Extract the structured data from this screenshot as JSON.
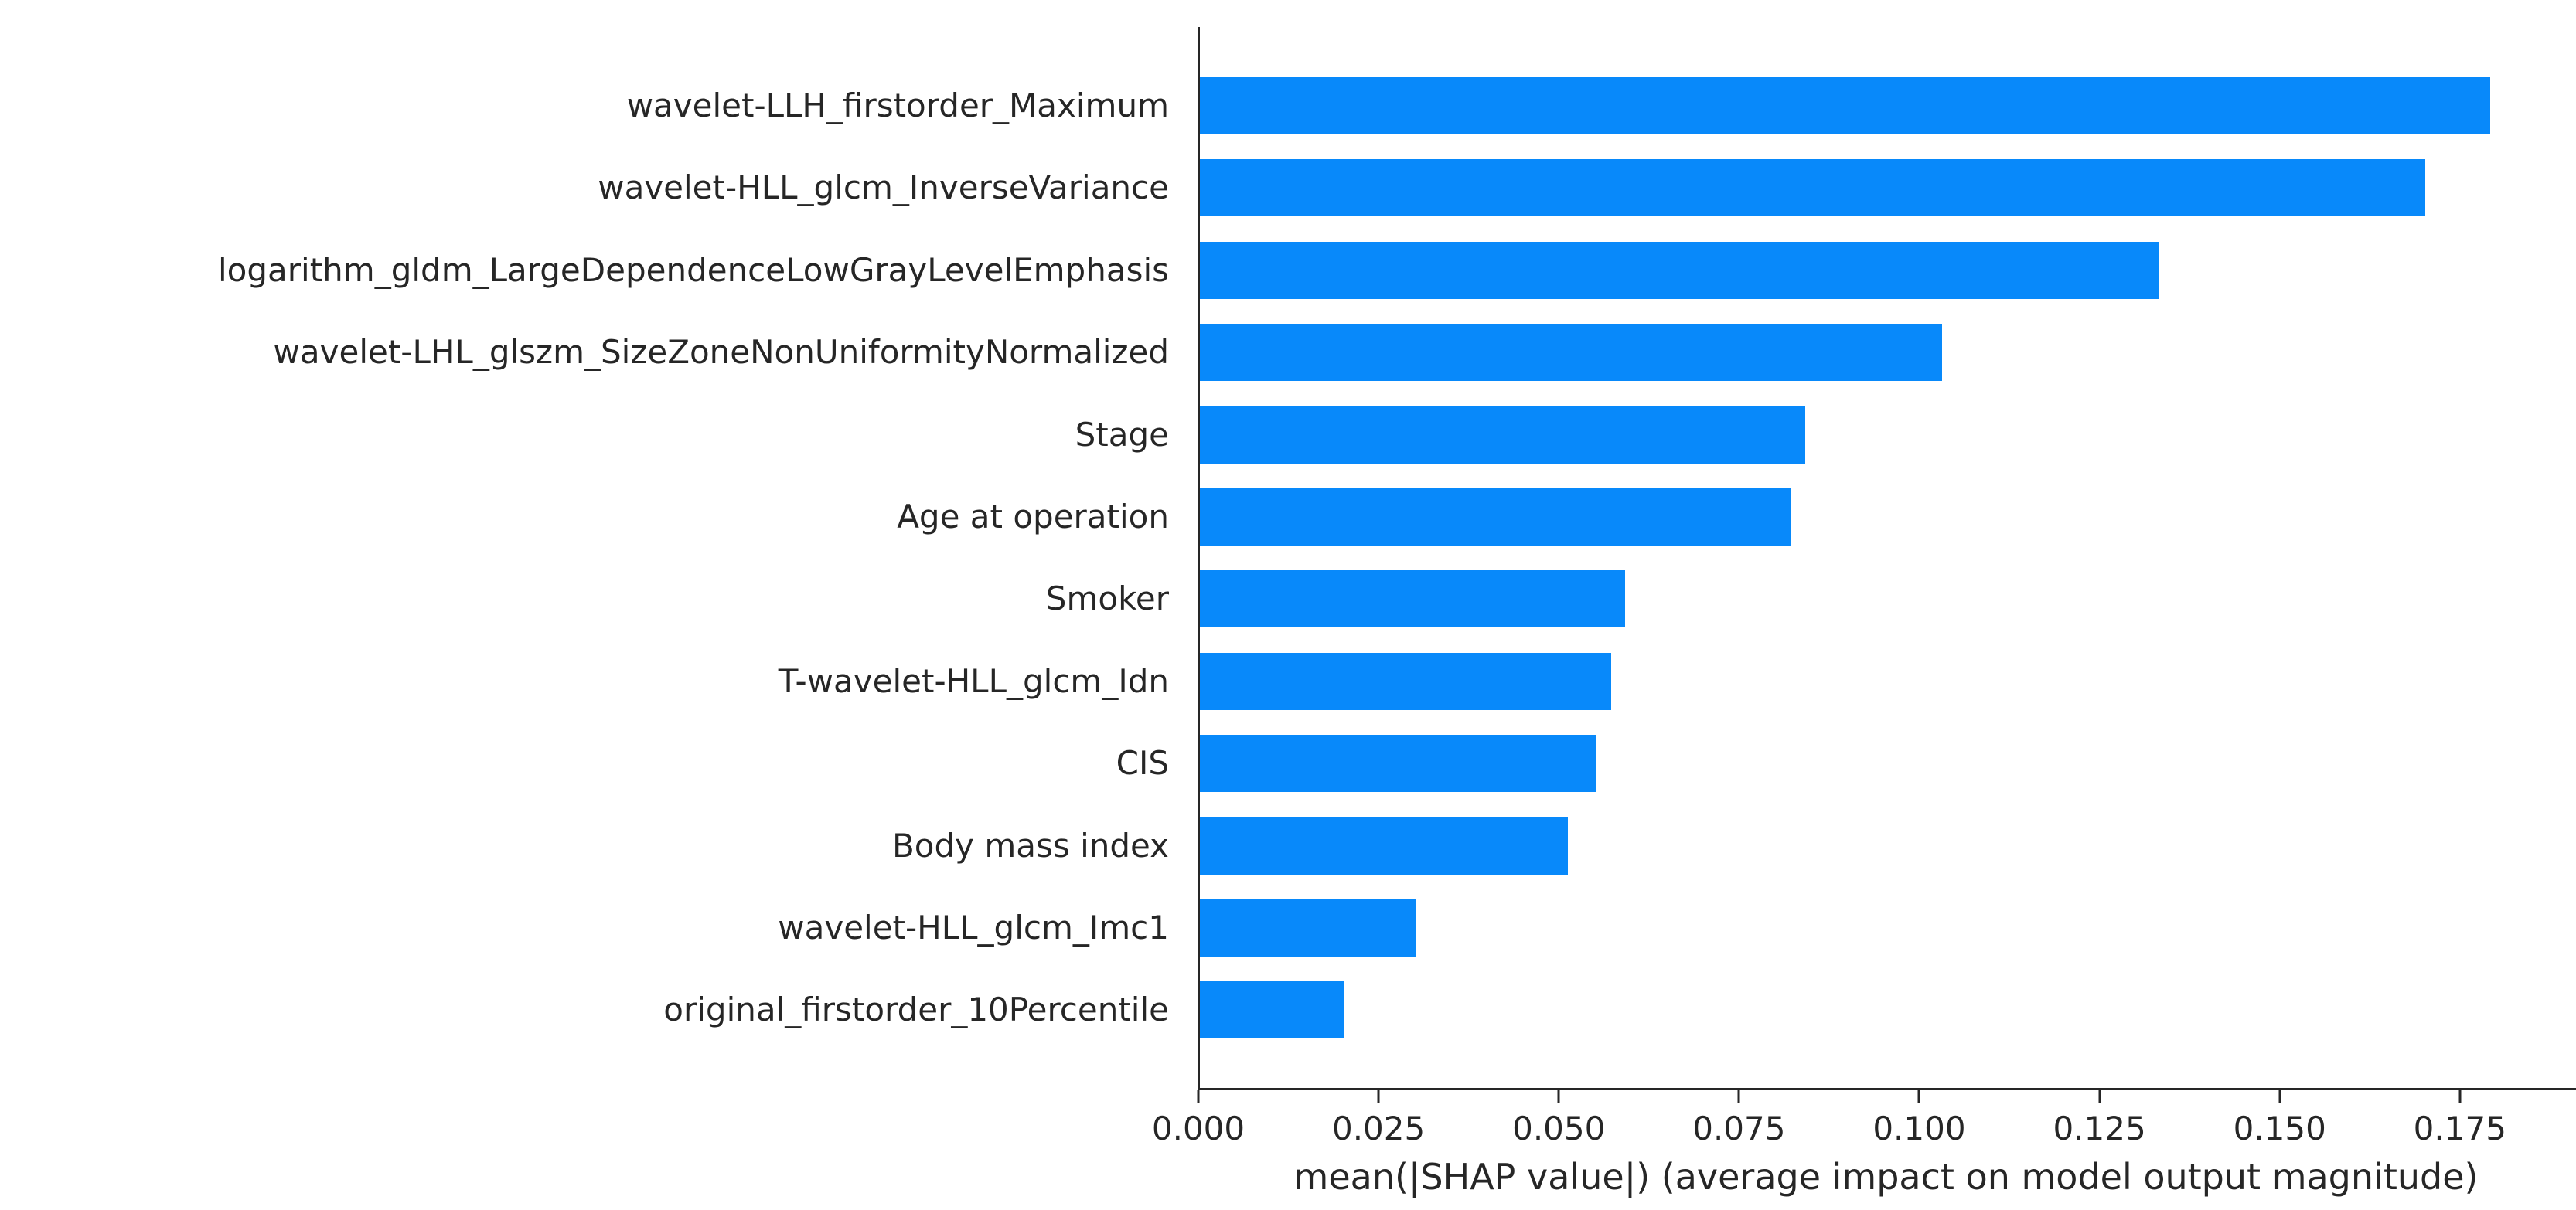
{
  "figure": {
    "background": "#ffffff"
  },
  "chart_data": {
    "type": "bar",
    "orientation": "horizontal",
    "title": "",
    "categories": [
      "wavelet-LLH_firstorder_Maximum",
      "wavelet-HLL_glcm_InverseVariance",
      "logarithm_gldm_LargeDependenceLowGrayLevelEmphasis",
      "wavelet-LHL_glszm_SizeZoneNonUniformityNormalized",
      "Stage",
      "Age at operation",
      "Smoker",
      "T-wavelet-HLL_glcm_Idn",
      "CIS",
      "Body mass index",
      "wavelet-HLL_glcm_Imc1",
      "original_firstorder_10Percentile"
    ],
    "values": [
      0.179,
      0.17,
      0.133,
      0.103,
      0.084,
      0.082,
      0.059,
      0.057,
      0.055,
      0.051,
      0.03,
      0.02
    ],
    "xlabel": "mean(|SHAP value|) (average impact on model output magnitude)",
    "xticks": [
      "0.000",
      "0.025",
      "0.050",
      "0.075",
      "0.100",
      "0.125",
      "0.150",
      "0.175"
    ],
    "xtick_values": [
      0,
      0.025,
      0.05,
      0.075,
      0.1,
      0.125,
      0.15,
      0.175
    ],
    "xlim": [
      0,
      0.191
    ],
    "grid": false,
    "legend": null,
    "bar_color": "#0889fa",
    "axis_color": "#262626",
    "text_color": "#262626"
  }
}
